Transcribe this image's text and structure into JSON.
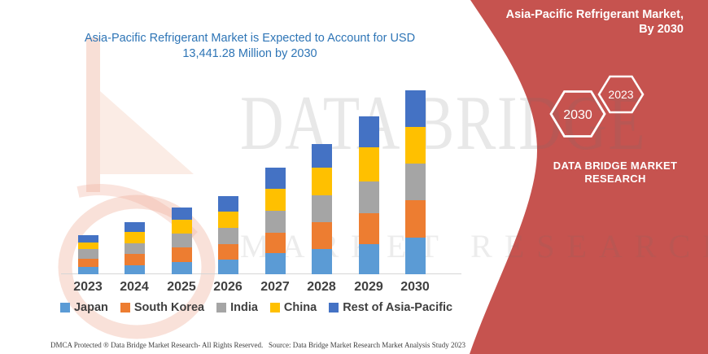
{
  "chart_title": {
    "line1": "Asia-Pacific Refrigerant Market is Expected to Account for USD",
    "line2": "13,441.28 Million by 2030"
  },
  "chart_data": {
    "type": "bar",
    "subtype": "stacked-vertical",
    "title": "Asia-Pacific Refrigerant Market is Expected to Account for USD 13,441.28 Million by 2030",
    "unit": "USD Million",
    "xlabel": "",
    "ylabel": "",
    "ylim": [
      0,
      13441.28
    ],
    "grid": false,
    "legend_position": "bottom",
    "categories": [
      "2023",
      "2024",
      "2025",
      "2026",
      "2027",
      "2028",
      "2029",
      "2030"
    ],
    "series": [
      {
        "name": "Japan",
        "color": "#5B9BD5",
        "values": [
          518,
          675,
          873,
          1072,
          1528,
          1866,
          2223,
          2660
        ]
      },
      {
        "name": "South Korea",
        "color": "#ED7D31",
        "values": [
          595,
          853,
          1052,
          1151,
          1489,
          1946,
          2283,
          2739
        ]
      },
      {
        "name": "India",
        "color": "#A5A5A5",
        "values": [
          695,
          794,
          993,
          1191,
          1588,
          1985,
          2322,
          2680
        ]
      },
      {
        "name": "China",
        "color": "#FFC000",
        "values": [
          496,
          834,
          993,
          1191,
          1588,
          2025,
          2482,
          2680
        ]
      },
      {
        "name": "Rest of Asia-Pacific",
        "color": "#4472C4",
        "values": [
          536,
          695,
          893,
          1151,
          1528,
          1746,
          2244,
          2682.28
        ]
      }
    ],
    "totals_estimated": [
      2840,
      3851,
      4804,
      5756,
      7721,
      9568,
      11554,
      13441.28
    ],
    "stated_value_2030": 13441.28
  },
  "watermark": {
    "line1": "DATA BRIDGE",
    "line2": "MARKET RESEARCH"
  },
  "side_panel": {
    "bg_color": "#C6534F",
    "title_line1": "Asia-Pacific Refrigerant Market,",
    "title_line2": "By 2030",
    "hexagons": [
      {
        "label": "2030"
      },
      {
        "label": "2023"
      }
    ],
    "brand_line1": "DATA BRIDGE MARKET",
    "brand_line2": "RESEARCH"
  },
  "footer": {
    "left": "DMCA Protected ® Data Bridge Market Research-  All Rights Reserved.",
    "right": "Source: Data Bridge Market Research  Market Analysis Study 2023"
  }
}
